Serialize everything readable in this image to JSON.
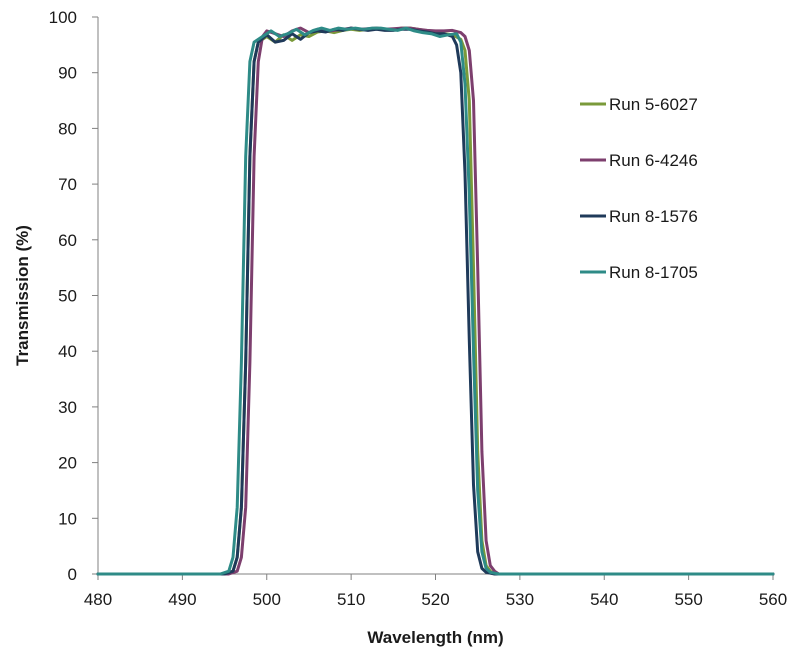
{
  "chart_data": {
    "type": "line",
    "xlabel": "Wavelength (nm)",
    "ylabel": "Transmission (%)",
    "xlim": [
      480,
      560
    ],
    "ylim": [
      0,
      100
    ],
    "xticks": [
      480,
      490,
      500,
      510,
      520,
      530,
      540,
      550,
      560
    ],
    "yticks": [
      0,
      10,
      20,
      30,
      40,
      50,
      60,
      70,
      80,
      90,
      100
    ],
    "grid": false,
    "legend_position": "right",
    "series": [
      {
        "name": "Run 5-6027",
        "color": "#7a9a3a",
        "x": [
          480,
          495,
          496,
          496.5,
          497,
          497.5,
          498,
          498.5,
          499,
          500,
          501,
          502,
          503,
          504,
          505,
          506,
          507,
          508,
          509,
          510,
          511,
          512,
          513,
          514,
          515,
          516,
          517,
          518,
          519,
          520,
          521,
          522,
          523,
          523.5,
          524,
          524.5,
          525,
          525.5,
          526,
          526.5,
          527,
          528,
          560
        ],
        "y": [
          0,
          0,
          0.5,
          3,
          12,
          38,
          75,
          92,
          95.5,
          96.5,
          95.5,
          96.8,
          95.8,
          96.8,
          96.5,
          97.3,
          97.5,
          97.2,
          97.6,
          97.8,
          97.6,
          97.8,
          98,
          97.8,
          97.8,
          98,
          98,
          97.8,
          97.5,
          97.3,
          97,
          96.8,
          96,
          94,
          85,
          55,
          22,
          6,
          1.5,
          0.5,
          0,
          0,
          0
        ]
      },
      {
        "name": "Run 6-4246",
        "color": "#7d3f6e",
        "x": [
          480,
          495.5,
          496.5,
          497,
          497.5,
          498,
          498.5,
          499,
          499.5,
          500,
          501,
          502,
          503,
          504,
          505,
          506,
          507,
          508,
          509,
          510,
          511,
          512,
          513,
          514,
          515,
          516,
          517,
          518,
          519,
          520,
          521,
          522,
          523,
          523.5,
          524,
          524.5,
          525,
          525.5,
          526,
          526.5,
          527,
          527.5,
          528.5,
          560
        ],
        "y": [
          0,
          0,
          0.5,
          3,
          12,
          38,
          75,
          92,
          96.5,
          97.5,
          97,
          96.5,
          97.5,
          98,
          97.2,
          97.8,
          97.4,
          97.6,
          97.8,
          98,
          97.8,
          97.9,
          98,
          97.8,
          97.9,
          98,
          98,
          97.8,
          97.6,
          97.5,
          97.5,
          97.6,
          97.2,
          96.5,
          94,
          85,
          55,
          22,
          6,
          1.5,
          0.5,
          0,
          0,
          0
        ]
      },
      {
        "name": "Run 8-1576",
        "color": "#1f3a5a",
        "x": [
          480,
          495,
          496,
          496.5,
          497,
          497.5,
          498,
          498.5,
          499,
          500,
          501,
          502,
          503,
          504,
          505,
          506,
          507,
          508,
          509,
          510,
          511,
          512,
          513,
          514,
          515,
          516,
          517,
          518,
          519,
          520,
          521,
          522,
          522.5,
          523,
          523.5,
          524,
          524.5,
          525,
          525.5,
          526,
          527,
          560
        ],
        "y": [
          0,
          0,
          0.5,
          3,
          12,
          38,
          75,
          92,
          95.5,
          96.8,
          95.5,
          95.8,
          97,
          96,
          97.2,
          97.5,
          97.3,
          97.8,
          97.6,
          98,
          97.8,
          97.6,
          97.8,
          97.6,
          97.6,
          97.8,
          97.8,
          97.5,
          97.3,
          97,
          97,
          96.5,
          95,
          90,
          72,
          42,
          16,
          4,
          1,
          0.3,
          0,
          0
        ]
      },
      {
        "name": "Run 8-1705",
        "color": "#2e8b87",
        "x": [
          480,
          494.5,
          495.5,
          496,
          496.5,
          497,
          497.5,
          498,
          498.5,
          499.5,
          500.5,
          501.5,
          502.5,
          503.5,
          504.5,
          505.5,
          506.5,
          507.5,
          508.5,
          509.5,
          510.5,
          511.5,
          512.5,
          513.5,
          514.5,
          515.5,
          516.5,
          517.5,
          518.5,
          519.5,
          520.5,
          521.5,
          522.5,
          523,
          523.5,
          524,
          524.5,
          525,
          525.5,
          526,
          526.5,
          527.5,
          560
        ],
        "y": [
          0,
          0,
          0.5,
          3,
          12,
          38,
          75,
          92,
          95.5,
          96.5,
          97.5,
          96.5,
          97,
          97.8,
          96.8,
          97.6,
          98,
          97.6,
          98,
          97.8,
          98,
          97.8,
          98,
          98,
          97.8,
          97.6,
          98,
          97.5,
          97.2,
          97,
          96.5,
          96.8,
          97,
          95.5,
          88,
          68,
          40,
          15,
          4,
          1,
          0.3,
          0,
          0
        ]
      }
    ]
  }
}
